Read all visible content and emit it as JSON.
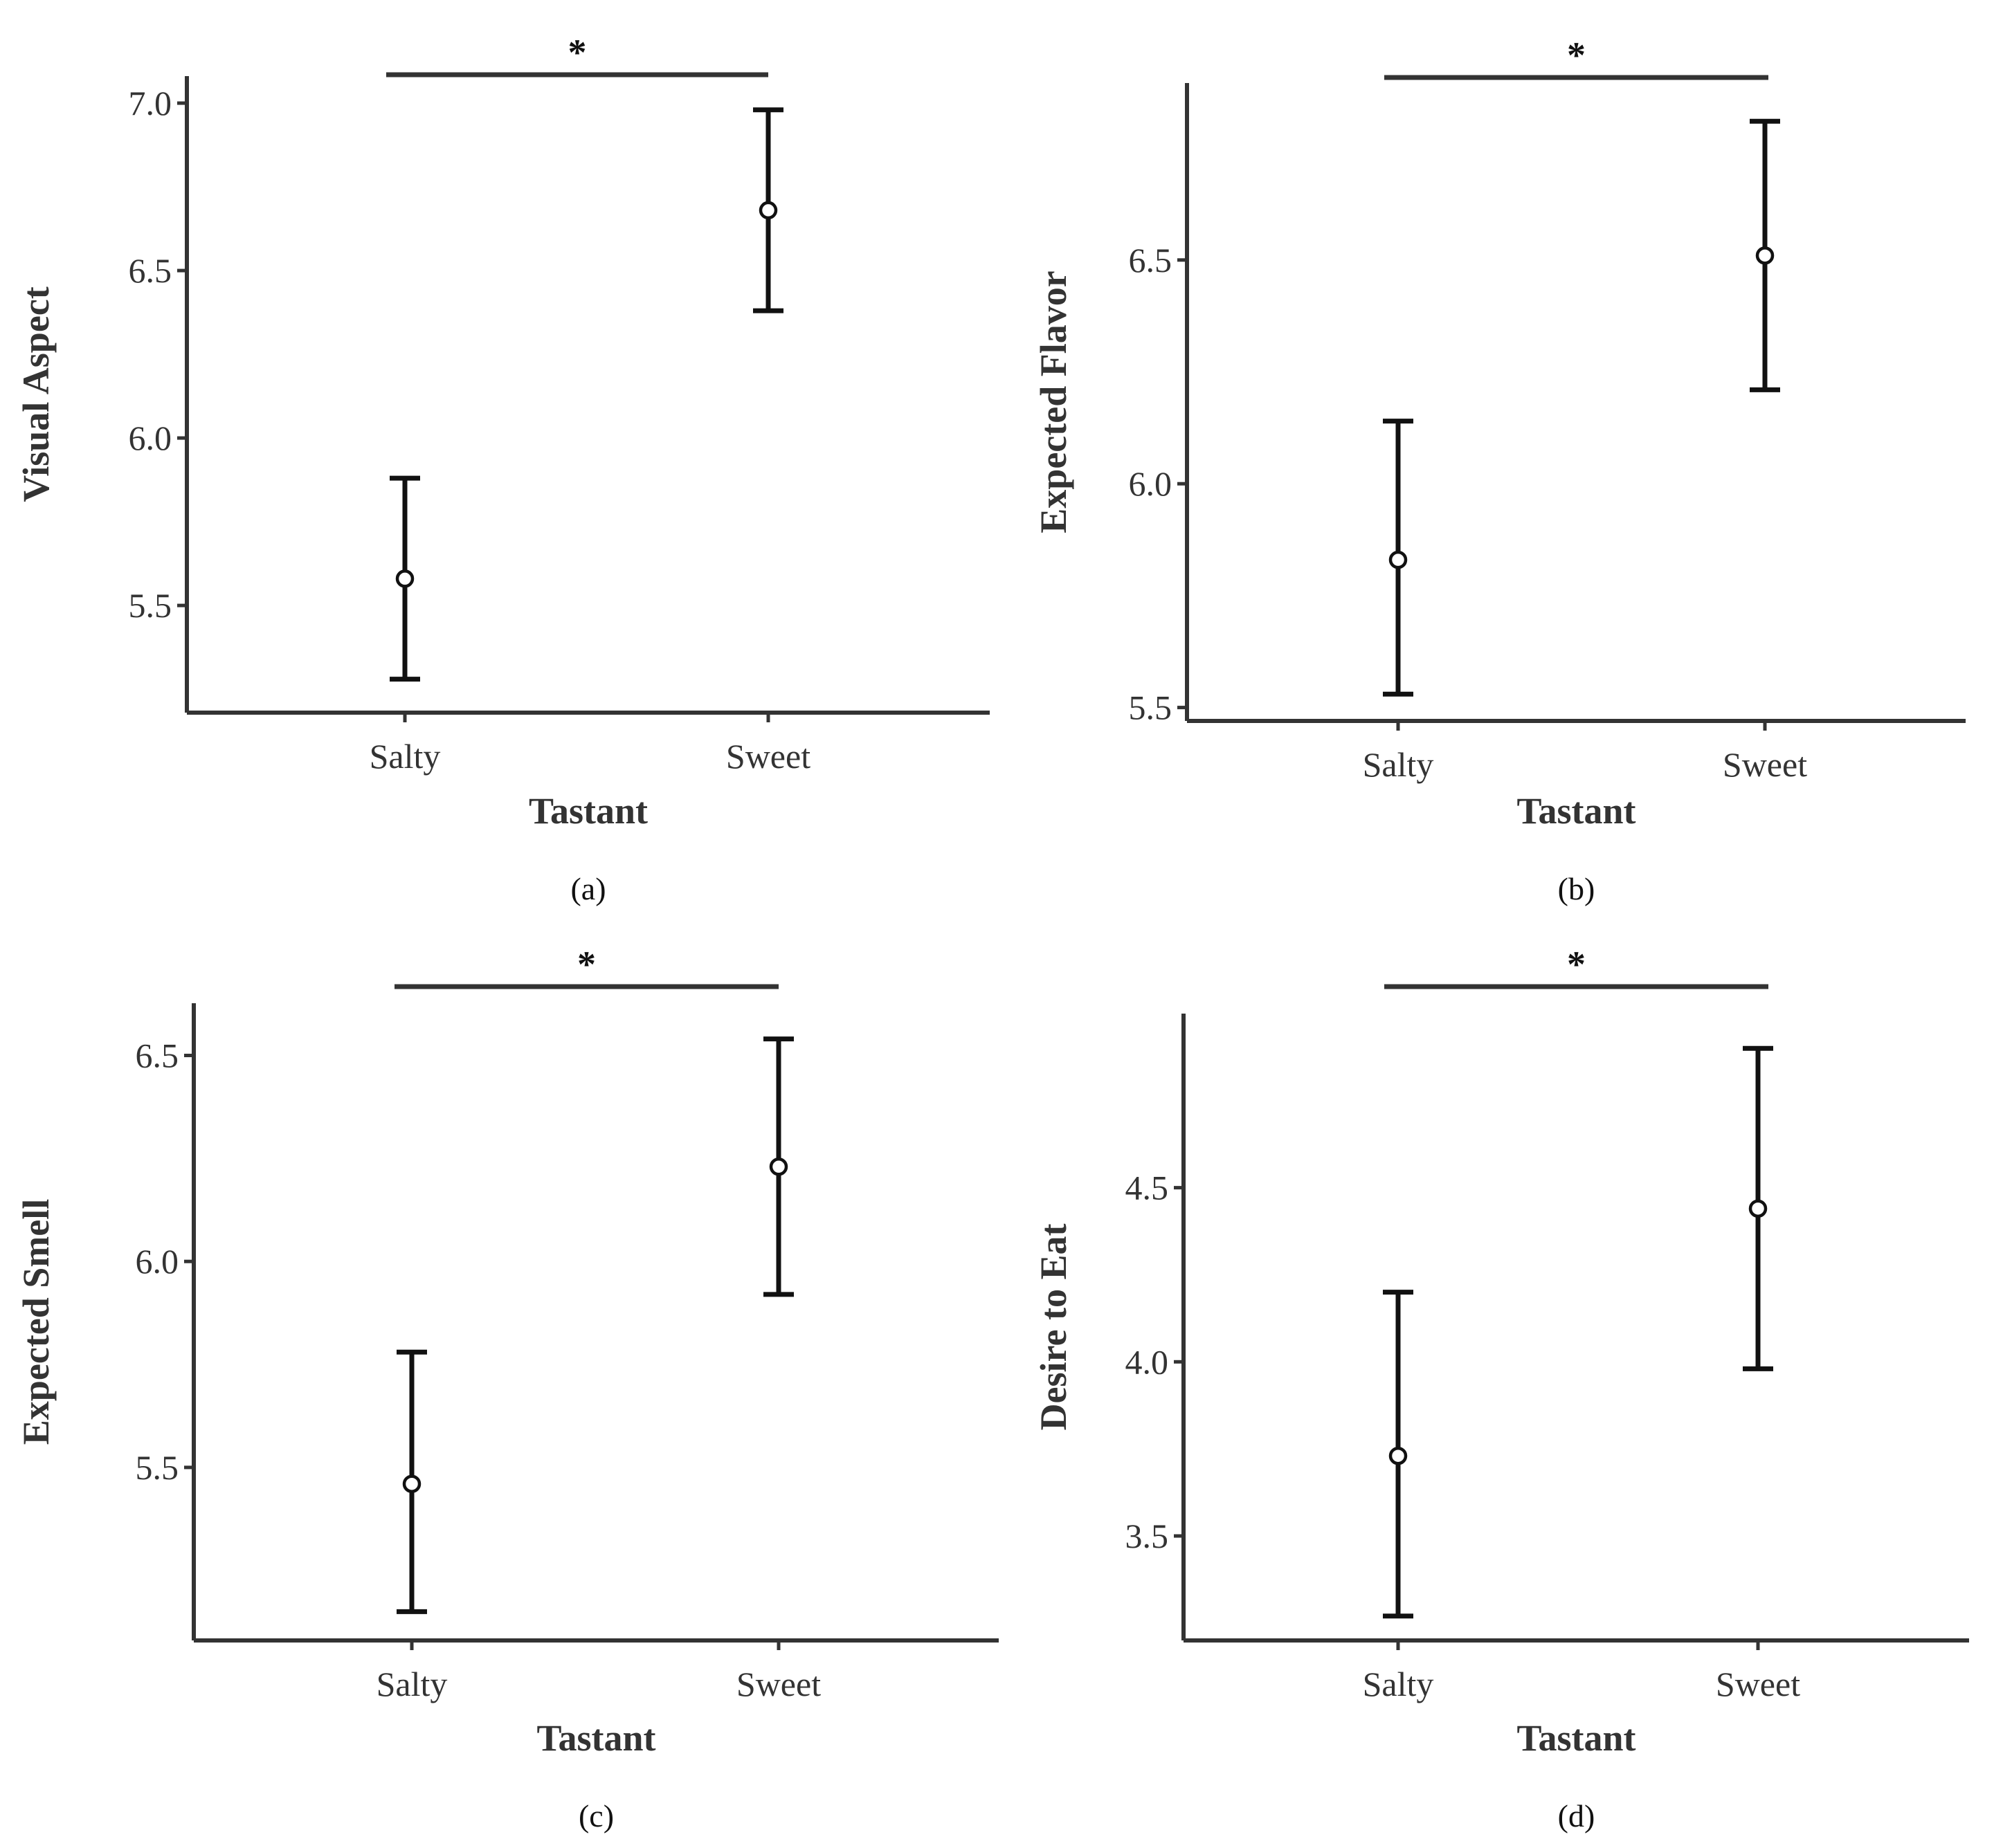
{
  "chart_data": [
    {
      "type": "errorbar",
      "panel_label": "(a)",
      "xlabel": "Tastant",
      "ylabel": "Visual Aspect",
      "categories": [
        "Salty",
        "Sweet"
      ],
      "means": [
        5.58,
        6.68
      ],
      "lower": [
        5.28,
        6.38
      ],
      "upper": [
        5.88,
        6.98
      ],
      "ylim": [
        5.18,
        7.06
      ],
      "yticks": [
        5.5,
        6.0,
        6.5,
        7.0
      ],
      "ytick_labels": [
        "5.5",
        "6.0",
        "6.5",
        "7.0"
      ],
      "significance": "*"
    },
    {
      "type": "errorbar",
      "panel_label": "(b)",
      "xlabel": "Tastant",
      "ylabel": "Expected Flavor",
      "categories": [
        "Salty",
        "Sweet"
      ],
      "means": [
        5.83,
        6.51
      ],
      "lower": [
        5.53,
        6.21
      ],
      "upper": [
        6.14,
        6.81
      ],
      "ylim": [
        5.47,
        6.88
      ],
      "yticks": [
        5.5,
        6.0,
        6.5
      ],
      "ytick_labels": [
        "5.5",
        "6.0",
        "6.5"
      ],
      "significance": "*"
    },
    {
      "type": "errorbar",
      "panel_label": "(c)",
      "xlabel": "Tastant",
      "ylabel": "Expected Smell",
      "categories": [
        "Salty",
        "Sweet"
      ],
      "means": [
        5.46,
        6.23
      ],
      "lower": [
        5.15,
        5.92
      ],
      "upper": [
        5.78,
        6.54
      ],
      "ylim": [
        5.08,
        6.61
      ],
      "yticks": [
        5.5,
        6.0,
        6.5
      ],
      "ytick_labels": [
        "5.5",
        "6.0",
        "6.5"
      ],
      "significance": "*"
    },
    {
      "type": "errorbar",
      "panel_label": "(d)",
      "xlabel": "Tastant",
      "ylabel": "Desire to Eat",
      "categories": [
        "Salty",
        "Sweet"
      ],
      "means": [
        3.73,
        4.44
      ],
      "lower": [
        3.27,
        3.98
      ],
      "upper": [
        4.2,
        4.9
      ],
      "ylim": [
        3.2,
        4.98
      ],
      "yticks": [
        3.5,
        4.0,
        4.5
      ],
      "ytick_labels": [
        "3.5",
        "4.0",
        "4.5"
      ],
      "significance": "*"
    }
  ]
}
